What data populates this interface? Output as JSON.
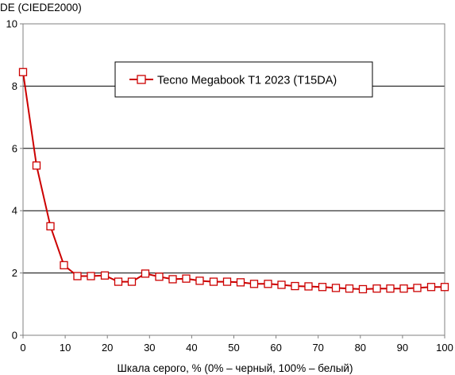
{
  "chart_data": {
    "type": "line",
    "title": "",
    "ylabel": "DE (CIEDE2000)",
    "xlabel": "Шкала серого, % (0% – черный, 100% – белый)",
    "xlim": [
      0,
      100
    ],
    "ylim": [
      0,
      10
    ],
    "xticks": [
      "0",
      "10",
      "20",
      "30",
      "40",
      "50",
      "60",
      "70",
      "80",
      "90",
      "100"
    ],
    "yticks": [
      "0",
      "2",
      "4",
      "6",
      "8",
      "10"
    ],
    "grid": "horizontal",
    "legend_position": "top-center",
    "series": [
      {
        "name": "Tecno Megabook T1 2023 (T15DA)",
        "color": "#cc0000",
        "marker": "open-square",
        "x": [
          0,
          3.2,
          6.5,
          9.7,
          12.9,
          16.1,
          19.4,
          22.6,
          25.8,
          29.0,
          32.3,
          35.5,
          38.7,
          41.9,
          45.2,
          48.4,
          51.6,
          54.8,
          58.1,
          61.3,
          64.5,
          67.7,
          71.0,
          74.2,
          77.4,
          80.6,
          83.9,
          87.1,
          90.3,
          93.5,
          96.8,
          100
        ],
        "y": [
          8.45,
          5.45,
          3.5,
          2.25,
          1.9,
          1.9,
          1.92,
          1.72,
          1.72,
          1.98,
          1.88,
          1.8,
          1.82,
          1.75,
          1.72,
          1.72,
          1.7,
          1.65,
          1.65,
          1.62,
          1.58,
          1.57,
          1.55,
          1.52,
          1.5,
          1.48,
          1.5,
          1.5,
          1.5,
          1.52,
          1.55,
          1.55
        ]
      }
    ]
  }
}
